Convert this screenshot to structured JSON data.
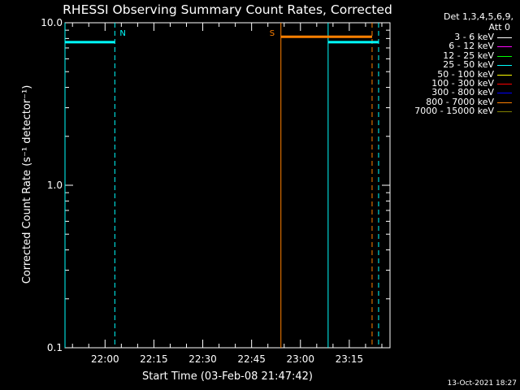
{
  "chart_data": {
    "type": "line",
    "title": "RHESSI Observing Summary Count Rates, Corrected",
    "xlabel": "Start Time (03-Feb-08 21:47:42)",
    "ylabel": "Corrected Count Rate (s⁻¹ detector⁻¹)",
    "y_scale": "log",
    "ylim": [
      0.1,
      10.0
    ],
    "y_ticks": [
      "10.0",
      "1.0",
      "0.1"
    ],
    "xlim": [
      "21:47:42",
      "23:27:30"
    ],
    "x_ticks": [
      "22:00",
      "22:15",
      "22:30",
      "22:45",
      "23:00",
      "23:15"
    ],
    "grid": false,
    "legend_position": "right",
    "legend_header": [
      "Det 1,3,4,5,6,9,",
      "Att 0"
    ],
    "series": [
      {
        "name": "3 - 6 keV",
        "color": "#ffffff",
        "points": []
      },
      {
        "name": "6 - 12 keV",
        "color": "#ff00ff",
        "points": []
      },
      {
        "name": "12 - 25 keV",
        "color": "#00ff00",
        "points": []
      },
      {
        "name": "25 - 50 keV",
        "color": "#00ffff",
        "points": [
          {
            "start": "21:47:42",
            "end": "22:03:00",
            "value": 7.6
          },
          {
            "start": "23:08:30",
            "end": "23:24:00",
            "value": 7.6
          }
        ]
      },
      {
        "name": "50 - 100 keV",
        "color": "#ffff00",
        "points": []
      },
      {
        "name": "100 - 300 keV",
        "color": "#ff0000",
        "points": []
      },
      {
        "name": "300 - 800 keV",
        "color": "#0000ff",
        "points": []
      },
      {
        "name": "800 - 7000 keV",
        "color": "#ff8000",
        "points": [
          {
            "start": "22:54:00",
            "end": "23:22:00",
            "value": 8.2
          }
        ]
      },
      {
        "name": "7000 - 15000 keV",
        "color": "#808000",
        "points": []
      }
    ],
    "markers": [
      {
        "label": "N",
        "color": "#00ffff",
        "solid_time": "21:47:42",
        "dashed_time": "22:03:00"
      },
      {
        "label": "S",
        "color": "#ff8000",
        "solid_time": "22:54:00",
        "dashed_time": "23:22:00"
      },
      {
        "label": "",
        "color": "#00ffff",
        "solid_time": "23:08:30",
        "dashed_time": "23:24:00"
      }
    ],
    "timestamp": "13-Oct-2021 18:27"
  }
}
